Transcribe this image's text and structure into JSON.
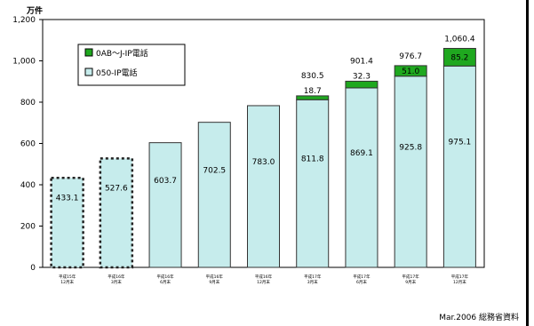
{
  "chart_data": {
    "type": "bar",
    "y_unit": "万件",
    "ylim": [
      0,
      1200
    ],
    "yticks": [
      "0",
      "200",
      "400",
      "600",
      "800",
      "1,000",
      "1,200"
    ],
    "categories": [
      [
        "平成15年",
        "12月末"
      ],
      [
        "平成16年",
        "3月末"
      ],
      [
        "平成16年",
        "6月末"
      ],
      [
        "平成16年",
        "9月末"
      ],
      [
        "平成16年",
        "12月末"
      ],
      [
        "平成17年",
        "3月末"
      ],
      [
        "平成17年",
        "6月末"
      ],
      [
        "平成17年",
        "9月末"
      ],
      [
        "平成17年",
        "12月末"
      ]
    ],
    "series": [
      {
        "name": "050-IP電話",
        "color": "#c6ecec",
        "values": [
          433.1,
          527.6,
          603.7,
          702.5,
          783.0,
          811.8,
          869.1,
          925.8,
          975.1
        ],
        "labels": [
          "433.1",
          "527.6",
          "603.7",
          "702.5",
          "783.0",
          "811.8",
          "869.1",
          "925.8",
          "975.1"
        ]
      },
      {
        "name": "0AB～J-IP電話",
        "color": "#1fa81f",
        "values": [
          0,
          0,
          0,
          0,
          0,
          18.7,
          32.3,
          51.0,
          85.2
        ],
        "labels": [
          "",
          "",
          "",
          "",
          "",
          "18.7",
          "32.3",
          "51.0",
          "85.2"
        ]
      }
    ],
    "dotted_outline_indices": [
      0,
      1
    ],
    "totals": [
      "",
      "",
      "",
      "",
      "",
      "830.5",
      "901.4",
      "976.7",
      "1,060.4"
    ],
    "grid": false,
    "legend_position": "top-left"
  },
  "source": "Mar.2006 総務省資料"
}
